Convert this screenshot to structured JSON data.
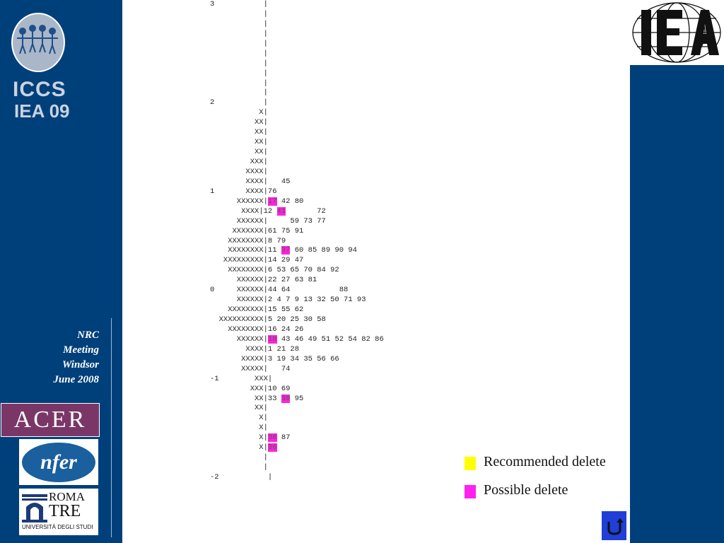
{
  "sidebar": {
    "logo_text": "ICCS",
    "logo_subtext": "IEA 09",
    "meeting": [
      "NRC",
      "Meeting",
      "Windsor",
      "June 2008"
    ],
    "partner_logos": {
      "acer": "ACER",
      "nfer": "nfer",
      "roma_line1": "ROMA",
      "roma_line2": "TRE",
      "roma_line3": "UNIVERSITÀ DEGLI STUDI"
    }
  },
  "header_logo": "IEA",
  "item_map": {
    "rows": [
      [
        {
          "t": "3           |"
        }
      ],
      [
        {
          "t": "            |"
        }
      ],
      [
        {
          "t": "            |"
        }
      ],
      [
        {
          "t": "            |"
        }
      ],
      [
        {
          "t": "            |"
        }
      ],
      [
        {
          "t": "            |"
        }
      ],
      [
        {
          "t": "            |"
        }
      ],
      [
        {
          "t": "            |"
        }
      ],
      [
        {
          "t": "            |"
        }
      ],
      [
        {
          "t": "            |"
        }
      ],
      [
        {
          "t": "2           |"
        }
      ],
      [
        {
          "t": "           X|"
        }
      ],
      [
        {
          "t": "          XX|"
        }
      ],
      [
        {
          "t": "          XX|"
        }
      ],
      [
        {
          "t": "          XX|"
        }
      ],
      [
        {
          "t": "          XX|"
        }
      ],
      [
        {
          "t": "         XXX|"
        }
      ],
      [
        {
          "t": "        XXXX|"
        }
      ],
      [
        {
          "t": "        XXXX|   45"
        }
      ],
      [
        {
          "t": "1       XXXX|76"
        }
      ],
      [
        {
          "t": "      XXXXXX|"
        },
        {
          "t": "17",
          "hl": true
        },
        {
          "t": " 42 80"
        }
      ],
      [
        {
          "t": "       XXXX|12 "
        },
        {
          "t": "41",
          "hl": true
        },
        {
          "t": "       72"
        }
      ],
      [
        {
          "t": "      XXXXXX|     59 73 77"
        }
      ],
      [
        {
          "t": "     XXXXXXX|61 75 91"
        }
      ],
      [
        {
          "t": "    XXXXXXXX|8 79"
        }
      ],
      [
        {
          "t": "    XXXXXXXX|11 "
        },
        {
          "t": "37",
          "hl": true
        },
        {
          "t": " 60 85 89 90 94"
        }
      ],
      [
        {
          "t": "   XXXXXXXXX|14 29 47"
        }
      ],
      [
        {
          "t": "    XXXXXXXX|6 53 65 70 84 92"
        }
      ],
      [
        {
          "t": "      XXXXXX|22 27 63 81"
        }
      ],
      [
        {
          "t": "0     XXXXXX|44 64           88"
        }
      ],
      [
        {
          "t": "      XXXXXX|2 4 7 9 13 32 50 71 93"
        }
      ],
      [
        {
          "t": "    XXXXXXXX|15 55 62"
        }
      ],
      [
        {
          "t": "  XXXXXXXXXX|5 20 25 30 58"
        }
      ],
      [
        {
          "t": "    XXXXXXXX|16 24 26"
        }
      ],
      [
        {
          "t": "      XXXXXX|"
        },
        {
          "t": "18",
          "hl": true
        },
        {
          "t": " 43 46 49 51 52 54 82 86"
        }
      ],
      [
        {
          "t": "        XXXX|1 21 28"
        }
      ],
      [
        {
          "t": "       XXXXX|3 19 34 35 56 66"
        }
      ],
      [
        {
          "t": "       XXXXX|   74"
        }
      ],
      [
        {
          "t": "-1        XXX|"
        }
      ],
      [
        {
          "t": "         XXX|10 69"
        }
      ],
      [
        {
          "t": "          XX|33 "
        },
        {
          "t": "39",
          "hl": true
        },
        {
          "t": " 95"
        }
      ],
      [
        {
          "t": "          XX|"
        }
      ],
      [
        {
          "t": "           X|"
        }
      ],
      [
        {
          "t": "           X|"
        }
      ],
      [
        {
          "t": "           X|"
        },
        {
          "t": "38",
          "hl": true
        },
        {
          "t": " 87"
        }
      ],
      [
        {
          "t": "           X|"
        },
        {
          "t": "36",
          "hl": true
        }
      ],
      [
        {
          "t": "            |"
        }
      ],
      [
        {
          "t": "            |"
        }
      ],
      [
        {
          "t": "-2           |"
        }
      ]
    ]
  },
  "legend": [
    {
      "label": "Recommended delete",
      "color": "#ffff00"
    },
    {
      "label": "Possible delete",
      "color": "#ff22ee"
    }
  ],
  "return_button": {
    "icon": "return-arrow-icon"
  }
}
